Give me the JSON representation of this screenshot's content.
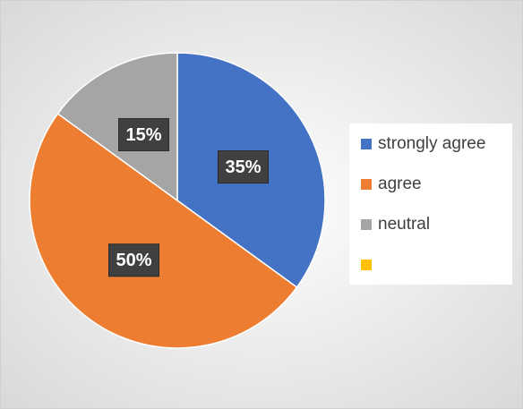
{
  "chart_data": {
    "type": "pie",
    "categories": [
      "strongly agree",
      "agree",
      "neutral",
      null
    ],
    "values": [
      35,
      50,
      15,
      0
    ],
    "value_labels": [
      "35%",
      "50%",
      "15%",
      null
    ],
    "colors": [
      "#4472c4",
      "#ed7d31",
      "#a5a5a5",
      "#ffc000"
    ],
    "legend": "right"
  }
}
